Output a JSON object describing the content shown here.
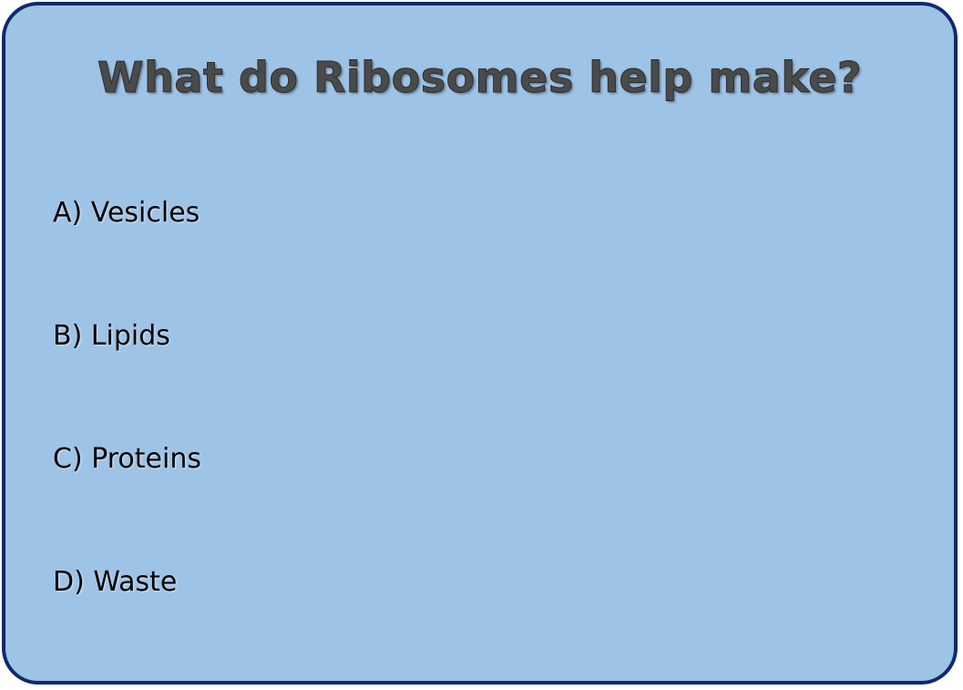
{
  "slide": {
    "title": "What do Ribosomes help make?",
    "options": [
      {
        "label": "A) Vesicles"
      },
      {
        "label": "B) Lipids"
      },
      {
        "label": "C) Proteins"
      },
      {
        "label": "D) Waste"
      }
    ],
    "colors": {
      "background": "#9dc3e6",
      "border": "#0f2a6b",
      "title": "#4a4a4a",
      "text": "#000000"
    }
  }
}
